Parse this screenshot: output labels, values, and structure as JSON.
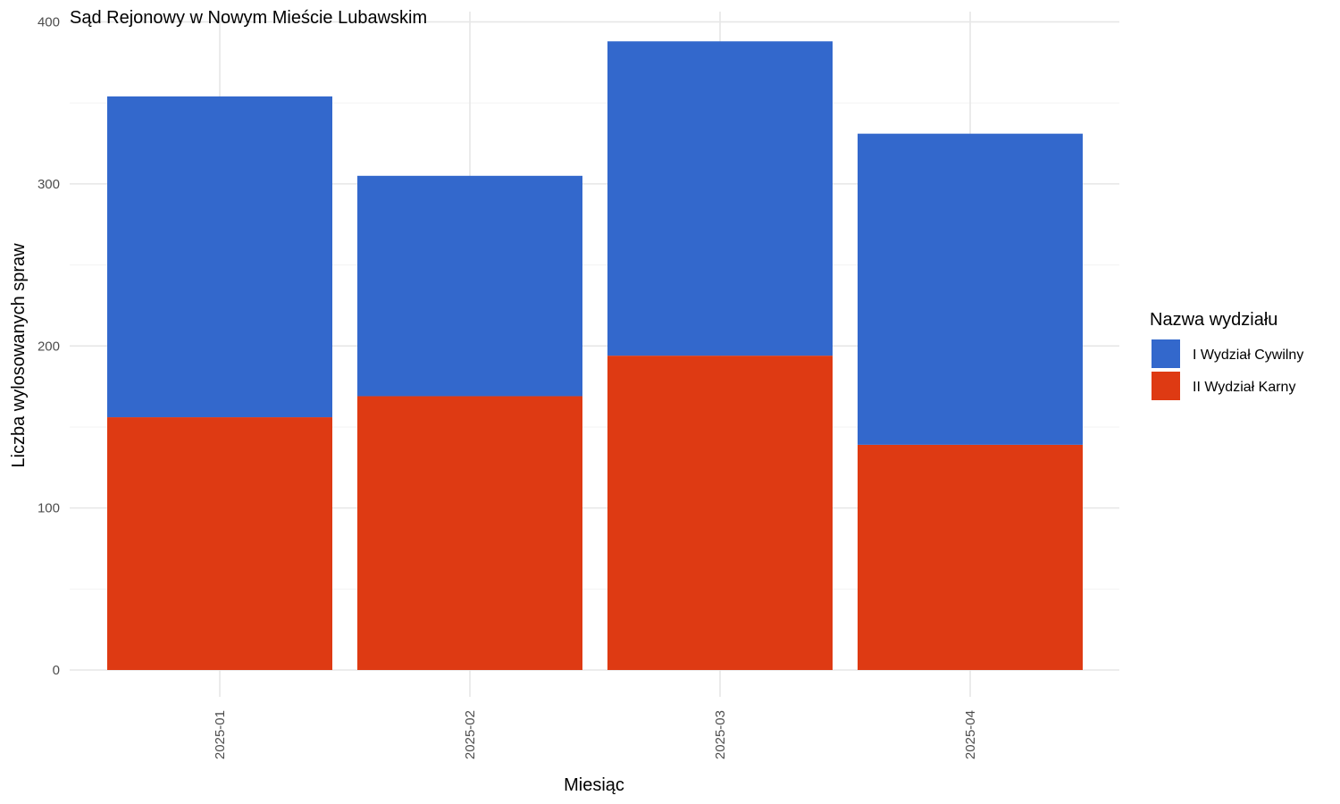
{
  "chart_data": {
    "type": "bar",
    "stacked": true,
    "title": "Sąd Rejonowy w Nowym Mieście Lubawskim",
    "xlabel": "Miesiąc",
    "ylabel": "Liczba wylosowanych spraw",
    "categories": [
      "2025-01",
      "2025-02",
      "2025-03",
      "2025-04"
    ],
    "series": [
      {
        "name": "II Wydział Karny",
        "color": "#DE3A13",
        "values": [
          156,
          169,
          194,
          139
        ]
      },
      {
        "name": "I Wydział Cywilny",
        "color": "#3368CC",
        "values": [
          198,
          136,
          194,
          192
        ]
      }
    ],
    "ylim": [
      0,
      400
    ],
    "yticks": [
      0,
      100,
      200,
      300,
      400
    ],
    "grid": true,
    "legend": {
      "title": "Nazwa wydziału",
      "position": "right",
      "order": [
        "I Wydział Cywilny",
        "II Wydział Karny"
      ]
    }
  }
}
